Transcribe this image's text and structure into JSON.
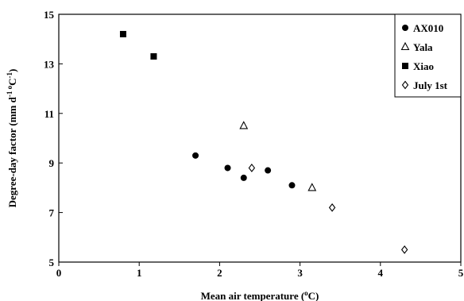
{
  "chart_data": {
    "type": "scatter",
    "xlabel": "Mean air temperature (°C)",
    "ylabel": "Degree-day factor (mm d⁻¹ °C⁻¹)",
    "xlim": [
      0,
      5
    ],
    "ylim": [
      5,
      15
    ],
    "x_ticks": [
      0,
      1,
      2,
      3,
      4,
      5
    ],
    "y_ticks": [
      5,
      7,
      9,
      11,
      13,
      15
    ],
    "grid": false,
    "legend_position": "top-right",
    "series": [
      {
        "name": "AX010",
        "marker": "filled-circle",
        "color": "#000000",
        "points": [
          [
            1.7,
            9.3
          ],
          [
            2.1,
            8.8
          ],
          [
            2.3,
            8.4
          ],
          [
            2.6,
            8.7
          ],
          [
            2.9,
            8.1
          ]
        ]
      },
      {
        "name": "Yala",
        "marker": "open-triangle",
        "color": "#000000",
        "points": [
          [
            2.3,
            10.5
          ],
          [
            3.15,
            8.0
          ]
        ]
      },
      {
        "name": "Xiao",
        "marker": "filled-square",
        "color": "#000000",
        "points": [
          [
            0.8,
            14.2
          ],
          [
            1.18,
            13.3
          ]
        ]
      },
      {
        "name": "July 1st",
        "marker": "open-diamond",
        "color": "#000000",
        "points": [
          [
            2.4,
            8.8
          ],
          [
            3.4,
            7.2
          ],
          [
            4.3,
            5.5
          ]
        ]
      }
    ]
  }
}
